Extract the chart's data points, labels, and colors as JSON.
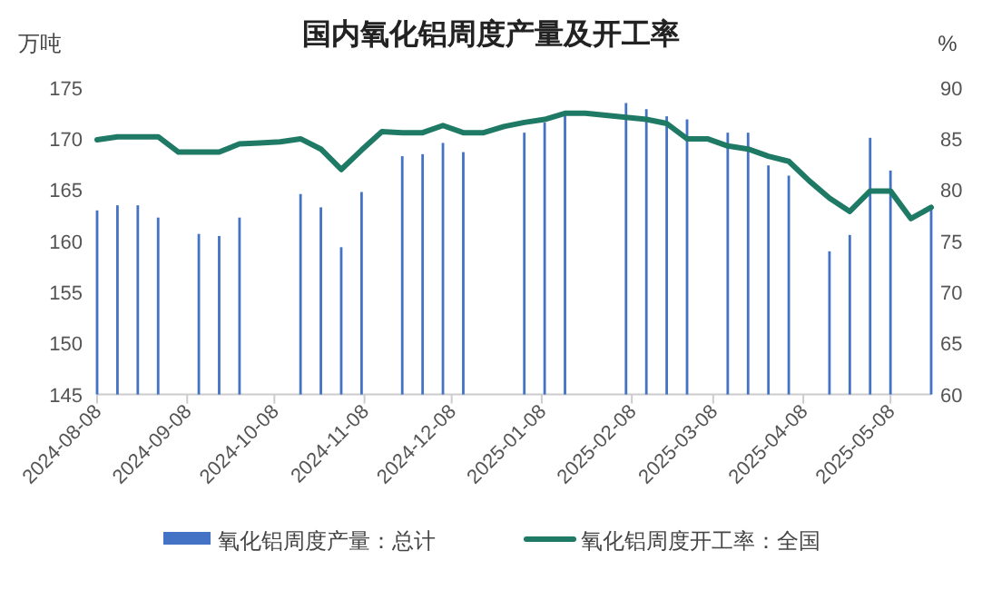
{
  "chart_data": {
    "type": "bar",
    "title": "国内氧化铝周度产量及开工率",
    "ylabel": "万吨",
    "y2label": "%",
    "x": [
      "2024-08-08",
      "2024-08-15",
      "2024-08-22",
      "2024-08-29",
      "2024-09-05",
      "2024-09-12",
      "2024-09-19",
      "2024-09-26",
      "2024-10-03",
      "2024-10-10",
      "2024-10-17",
      "2024-10-24",
      "2024-10-31",
      "2024-11-07",
      "2024-11-14",
      "2024-11-21",
      "2024-11-28",
      "2024-12-05",
      "2024-12-12",
      "2024-12-19",
      "2024-12-26",
      "2025-01-02",
      "2025-01-09",
      "2025-01-16",
      "2025-01-23",
      "2025-01-30",
      "2025-02-06",
      "2025-02-13",
      "2025-02-20",
      "2025-02-27",
      "2025-03-06",
      "2025-03-13",
      "2025-03-20",
      "2025-03-27",
      "2025-04-03",
      "2025-04-10",
      "2025-04-17",
      "2025-04-24",
      "2025-05-01",
      "2025-05-08",
      "2025-05-15",
      "2025-05-22"
    ],
    "series": [
      {
        "name": "氧化铝周度产量：总计",
        "color": "#4472c4",
        "values": [
          163.0,
          163.5,
          163.5,
          162.3,
          null,
          160.7,
          160.5,
          162.3,
          null,
          null,
          164.6,
          163.3,
          159.4,
          164.8,
          null,
          168.3,
          168.5,
          169.6,
          168.7,
          null,
          null,
          170.6,
          171.6,
          172.5,
          null,
          null,
          173.5,
          172.9,
          172.2,
          171.9,
          null,
          170.6,
          170.6,
          167.4,
          166.4,
          null,
          159.0,
          160.6,
          170.1,
          166.9,
          null,
          163.5
        ]
      },
      {
        "name": "氧化铝周度开工率：全国",
        "type": "line",
        "axis": "y2",
        "color": "#1f7a65",
        "values": [
          84.9,
          85.2,
          85.2,
          85.2,
          83.7,
          83.7,
          83.7,
          84.5,
          84.6,
          84.7,
          85.0,
          84.0,
          82.0,
          83.9,
          85.7,
          85.6,
          85.6,
          86.3,
          85.6,
          85.6,
          86.2,
          86.6,
          86.9,
          87.5,
          87.5,
          87.3,
          87.1,
          86.9,
          86.5,
          85.0,
          85.0,
          84.3,
          84.0,
          83.3,
          82.8,
          80.9,
          79.2,
          77.9,
          79.9,
          79.9,
          77.2,
          78.3
        ]
      }
    ],
    "xlim": [
      "2024-08-08",
      "2025-05-22"
    ],
    "xticks": [
      "2024-08-08",
      "2024-09-08",
      "2024-10-08",
      "2024-11-08",
      "2024-12-08",
      "2025-01-08",
      "2025-02-08",
      "2025-03-08",
      "2025-04-08",
      "2025-05-08"
    ],
    "ylim": [
      145,
      175
    ],
    "yticks": [
      145,
      150,
      155,
      160,
      165,
      170,
      175
    ],
    "y2lim": [
      60,
      90
    ],
    "y2ticks": [
      60,
      65,
      70,
      75,
      80,
      85,
      90
    ],
    "legend": "bottom",
    "grid": false
  }
}
